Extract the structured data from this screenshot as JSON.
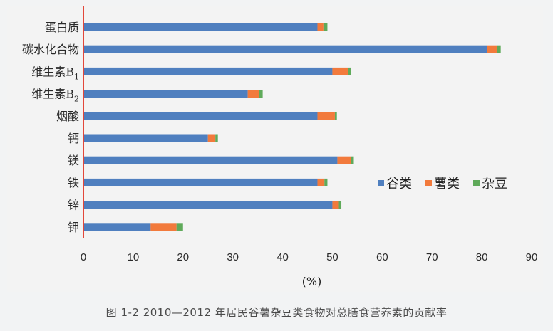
{
  "chart_data": {
    "type": "bar",
    "orientation": "horizontal",
    "stacked": true,
    "categories": [
      "蛋白质",
      "碳水化合物",
      "维生素B1",
      "维生素B2",
      "烟酸",
      "钙",
      "镁",
      "铁",
      "锌",
      "钾"
    ],
    "category_display": [
      {
        "main": "蛋白质",
        "sub": ""
      },
      {
        "main": "碳水化合物",
        "sub": ""
      },
      {
        "main": "维生素B",
        "sub": "1"
      },
      {
        "main": "维生素B",
        "sub": "2"
      },
      {
        "main": "烟酸",
        "sub": ""
      },
      {
        "main": "钙",
        "sub": ""
      },
      {
        "main": "镁",
        "sub": ""
      },
      {
        "main": "铁",
        "sub": ""
      },
      {
        "main": "锌",
        "sub": ""
      },
      {
        "main": "钾",
        "sub": ""
      }
    ],
    "series": [
      {
        "name": "谷类",
        "color": "#4f7fbf",
        "values": [
          47,
          81,
          50,
          33,
          47,
          25,
          51,
          47,
          50,
          13.5
        ]
      },
      {
        "name": "薯类",
        "color": "#f27a3c",
        "values": [
          1.2,
          2.1,
          3.2,
          2.3,
          3.5,
          1.5,
          2.8,
          1.4,
          1.3,
          5.2
        ]
      },
      {
        "name": "杂豆",
        "color": "#5faa5a",
        "values": [
          0.8,
          0.7,
          0.5,
          0.7,
          0.4,
          0.5,
          0.5,
          0.6,
          0.5,
          1.3
        ]
      }
    ],
    "xlim": [
      0,
      90
    ],
    "xticks": [
      0,
      10,
      20,
      30,
      40,
      50,
      60,
      70,
      80,
      90
    ],
    "xlabel": "(%)",
    "legend_position": "right-lower",
    "grid": false,
    "axis_color": "#e2473a"
  },
  "caption": "图 1-2  2010—2012 年居民谷薯杂豆类食物对总膳食营养素的贡献率"
}
